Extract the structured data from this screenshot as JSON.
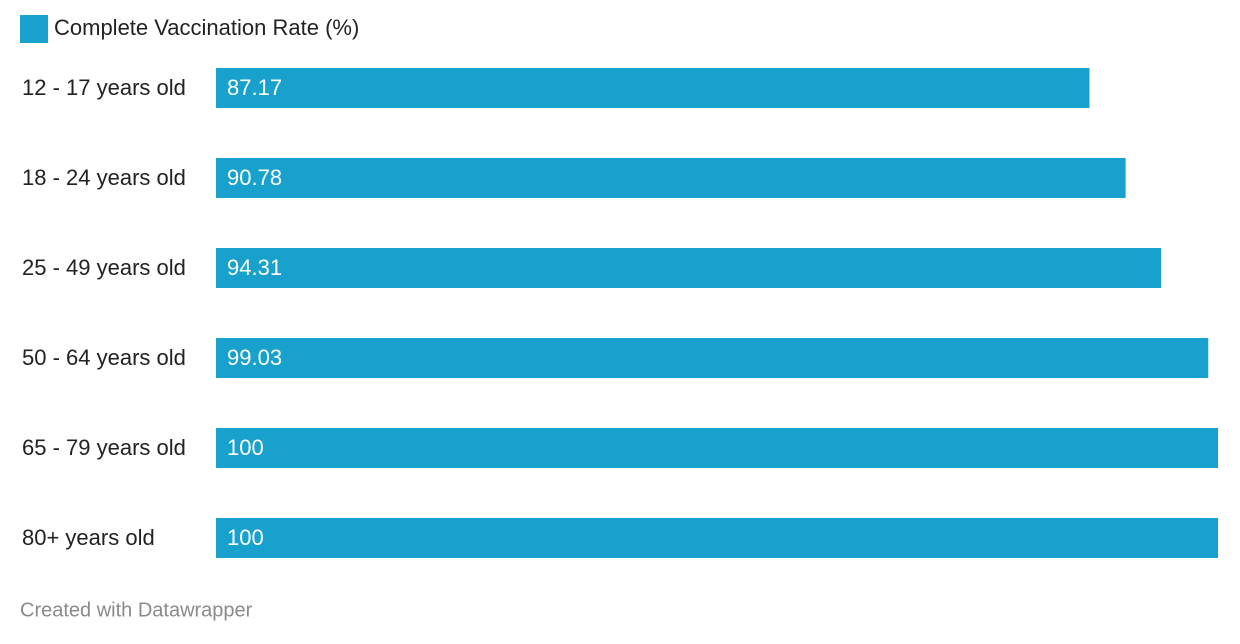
{
  "chart_data": {
    "type": "bar",
    "categories": [
      "12 - 17 years old",
      "18 - 24 years old",
      "25 - 49 years old",
      "50 - 64 years old",
      "65 - 79 years old",
      "80+ years old"
    ],
    "series": [
      {
        "name": "Complete Vaccination Rate (%)",
        "color": "#18a1cd",
        "values": [
          87.17,
          90.78,
          94.31,
          99.03,
          100,
          100
        ]
      }
    ],
    "credit": "Created with Datawrapper"
  }
}
